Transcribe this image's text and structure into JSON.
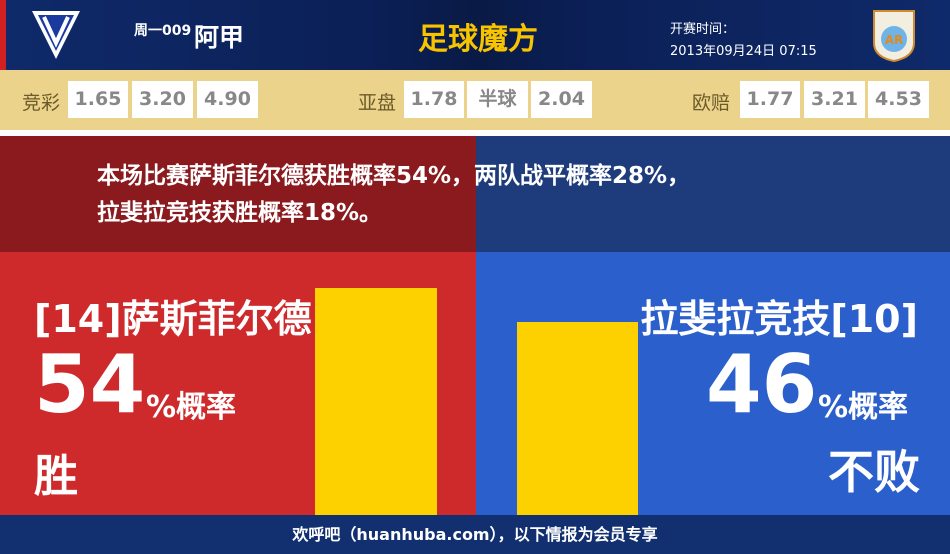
{
  "header": {
    "match_no": "周一009",
    "league": "阿甲",
    "brand": "足球魔方",
    "start_label": "开赛时间：",
    "start_time": "2013年09月24日 07:15",
    "home_logo": "velez-crest-icon",
    "away_logo": "arsenal-sarandi-crest-icon"
  },
  "odds": {
    "jingcai": {
      "label": "竞彩",
      "values": [
        "1.65",
        "3.20",
        "4.90"
      ]
    },
    "yapan": {
      "label": "亚盘",
      "values": [
        "1.78",
        "半球",
        "2.04"
      ]
    },
    "oupei": {
      "label": "欧赔",
      "values": [
        "1.77",
        "3.21",
        "4.53"
      ]
    }
  },
  "summary": {
    "line1": "本场比赛萨斯菲尔德获胜概率54%，两队战平概率28%，",
    "line2": "拉斐拉竞技获胜概率18%。"
  },
  "home": {
    "name": "[14]萨斯菲尔德",
    "pct": "54",
    "pct_suffix": "%概率",
    "outcome": "胜",
    "bar_value": 54
  },
  "away": {
    "name": "拉斐拉竞技[10]",
    "pct": "46",
    "pct_suffix": "%概率",
    "outcome": "不败",
    "bar_value": 46
  },
  "colors": {
    "home": "#ce2a2c",
    "away": "#2b5fcb",
    "bar": "#fdd000"
  },
  "footer": {
    "text": "欢呼吧（huanhuba.com），以下情报为会员专享"
  }
}
